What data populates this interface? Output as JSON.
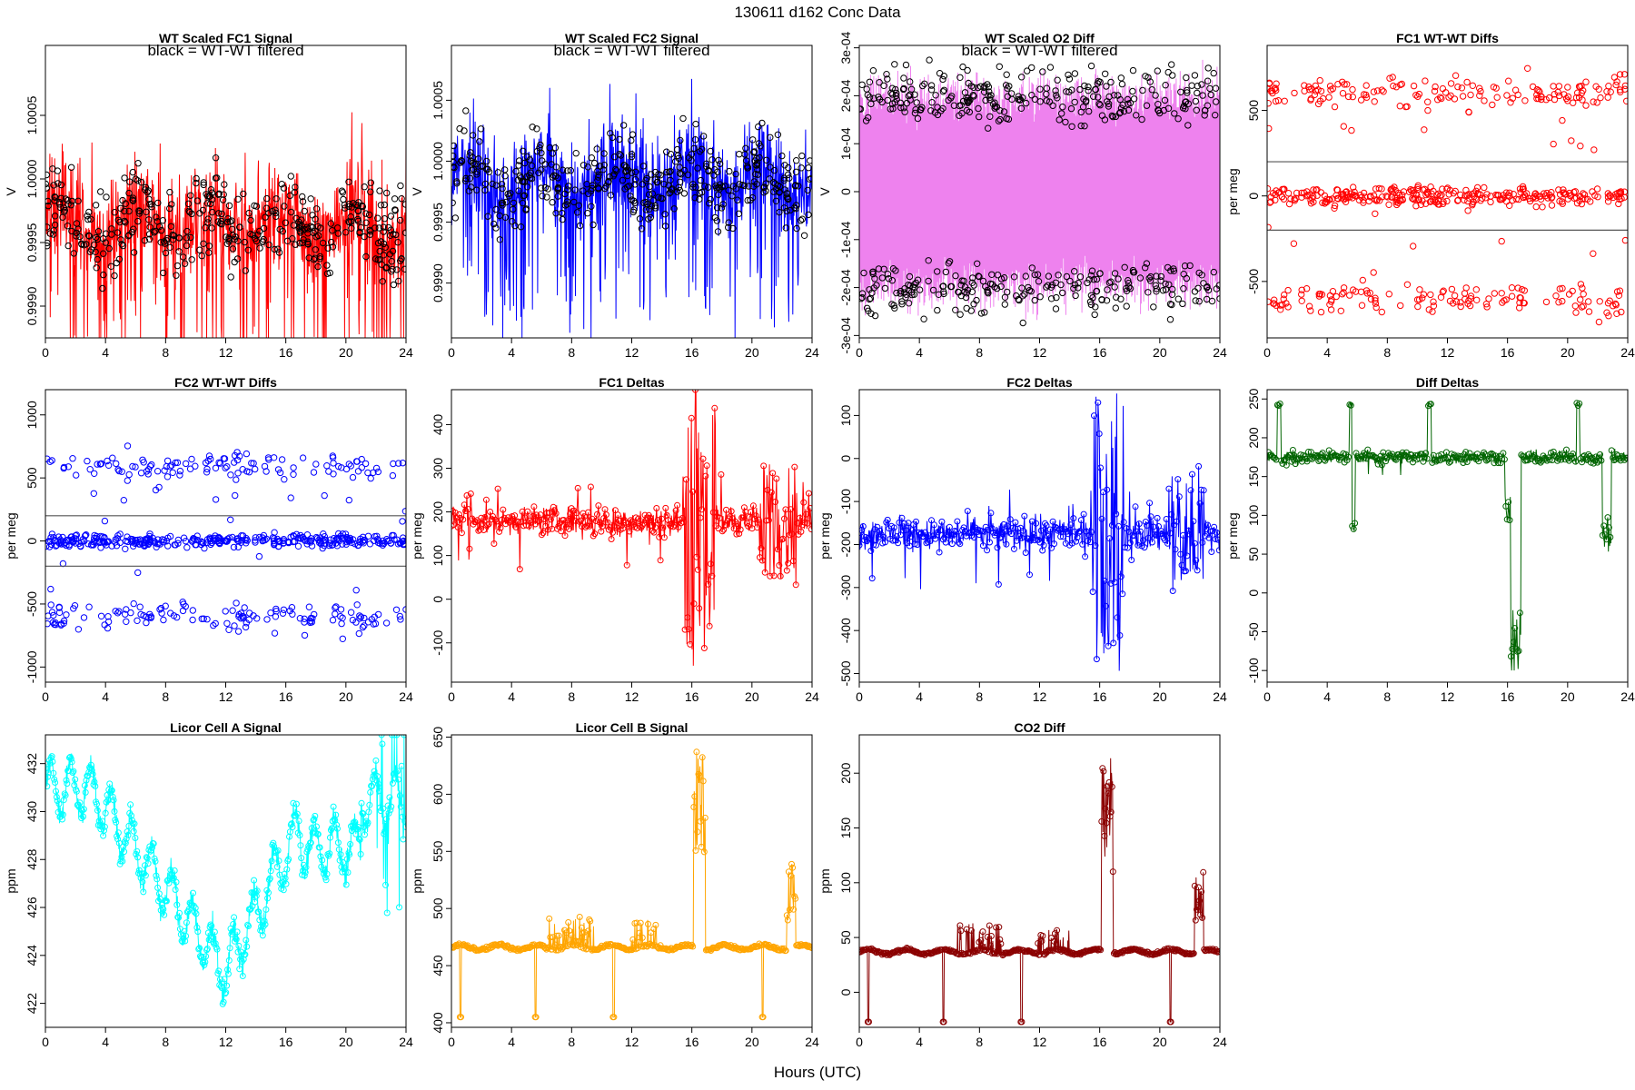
{
  "figure": {
    "title": "130611    d162    Conc Data",
    "xlabel": "Hours (UTC)"
  },
  "chart_data": [
    {
      "id": "fc1-signal",
      "type": "line",
      "title": "WT Scaled FC1 Signal",
      "subtitle": "black = WT-WT filtered",
      "ylabel": "V",
      "xlim": [
        0,
        24
      ],
      "ylim": [
        0.99875,
        1.00105
      ],
      "xticks": [
        "0",
        "4",
        "8",
        "12",
        "16",
        "20",
        "24"
      ],
      "yticks": [
        {
          "v": 0.999,
          "label": "0.9990"
        },
        {
          "v": 0.9995,
          "label": "0.9995"
        },
        {
          "v": 1.0,
          "label": "1.0000"
        },
        {
          "v": 1.0005,
          "label": "1.0005"
        }
      ],
      "line_color": "#ff0000",
      "overlay_color": "#000000",
      "style": "signal",
      "base": 0.99965,
      "amp": 0.0004,
      "noise": 0.0002,
      "spike": -0.0008,
      "hline": []
    },
    {
      "id": "fc2-signal",
      "type": "line",
      "title": "WT Scaled FC2 Signal",
      "subtitle": "black = WT-WT filtered",
      "ylabel": "V",
      "xlim": [
        0,
        24
      ],
      "ylim": [
        0.99855,
        1.00095
      ],
      "xticks": [
        "0",
        "4",
        "8",
        "12",
        "16",
        "20",
        "24"
      ],
      "yticks": [
        {
          "v": 0.999,
          "label": "0.9990"
        },
        {
          "v": 0.9995,
          "label": "0.9995"
        },
        {
          "v": 1.0,
          "label": "1.0000"
        },
        {
          "v": 1.0005,
          "label": "1.0005"
        }
      ],
      "line_color": "#0000ff",
      "overlay_color": "#000000",
      "style": "signal",
      "base": 0.99985,
      "amp": 0.0004,
      "noise": 0.0002,
      "spike": -0.0008,
      "hline": []
    },
    {
      "id": "o2-diff",
      "type": "line",
      "title": "WT Scaled O2 Diff",
      "subtitle": "black = WT-WT filtered",
      "ylabel": "V",
      "xlim": [
        0,
        24
      ],
      "ylim": [
        -0.000305,
        0.000305
      ],
      "xticks": [
        "0",
        "4",
        "8",
        "12",
        "16",
        "20",
        "24"
      ],
      "yticks": [
        {
          "v": -0.0003,
          "label": "-3e-04"
        },
        {
          "v": -0.0002,
          "label": "-2e-04"
        },
        {
          "v": -0.0001,
          "label": "-1e-04"
        },
        {
          "v": 0,
          "label": "0"
        },
        {
          "v": 0.0001,
          "label": "1e-04"
        },
        {
          "v": 0.0002,
          "label": "2e-04"
        },
        {
          "v": 0.0003,
          "label": "3e-04"
        }
      ],
      "line_color": "#ee82ee",
      "overlay_color": "#000000",
      "style": "band",
      "level": 0.0002,
      "noise": 3e-05,
      "hline": []
    },
    {
      "id": "fc1-wtwt-diffs",
      "type": "scatter",
      "title": "FC1 WT-WT Diffs",
      "ylabel": "per meg",
      "xlim": [
        0,
        24
      ],
      "ylim": [
        -830,
        880
      ],
      "xticks": [
        "0",
        "4",
        "8",
        "12",
        "16",
        "20",
        "24"
      ],
      "yticks": [
        {
          "v": -500,
          "label": "-500"
        },
        {
          "v": 0,
          "label": "0"
        },
        {
          "v": 500,
          "label": "500"
        }
      ],
      "line_color": "#ff0000",
      "style": "diffs",
      "level": 600,
      "noise": 60,
      "hline": [
        200,
        -200
      ]
    },
    {
      "id": "fc2-wtwt-diffs",
      "type": "scatter",
      "title": "FC2 WT-WT Diffs",
      "ylabel": "per meg",
      "xlim": [
        0,
        24
      ],
      "ylim": [
        -1120,
        1200
      ],
      "xticks": [
        "0",
        "4",
        "8",
        "12",
        "16",
        "20",
        "24"
      ],
      "yticks": [
        {
          "v": -1000,
          "label": "-1000"
        },
        {
          "v": -500,
          "label": "-500"
        },
        {
          "v": 0,
          "label": "0"
        },
        {
          "v": 500,
          "label": "500"
        },
        {
          "v": 1000,
          "label": "1000"
        }
      ],
      "line_color": "#0000ff",
      "style": "diffs",
      "level": 600,
      "noise": 60,
      "hline": [
        200,
        -200
      ]
    },
    {
      "id": "fc1-deltas",
      "type": "line",
      "title": "FC1 Deltas",
      "ylabel": "per meg",
      "xlim": [
        0,
        24
      ],
      "ylim": [
        -190,
        480
      ],
      "xticks": [
        "0",
        "4",
        "8",
        "12",
        "16",
        "20",
        "24"
      ],
      "yticks": [
        {
          "v": -100,
          "label": "-100"
        },
        {
          "v": 0,
          "label": "0"
        },
        {
          "v": 100,
          "label": "100"
        },
        {
          "v": 200,
          "label": "200"
        },
        {
          "v": 300,
          "label": "300"
        },
        {
          "v": 400,
          "label": "400"
        }
      ],
      "line_color": "#ff0000",
      "style": "deltas",
      "base": 180,
      "noise": 22,
      "event_amp": 280,
      "hline": []
    },
    {
      "id": "fc2-deltas",
      "type": "line",
      "title": "FC2 Deltas",
      "ylabel": "per meg",
      "xlim": [
        0,
        24
      ],
      "ylim": [
        -520,
        160
      ],
      "xticks": [
        "0",
        "4",
        "8",
        "12",
        "16",
        "20",
        "24"
      ],
      "yticks": [
        {
          "v": -500,
          "label": "-500"
        },
        {
          "v": -400,
          "label": "-400"
        },
        {
          "v": -300,
          "label": "-300"
        },
        {
          "v": -200,
          "label": "-200"
        },
        {
          "v": -100,
          "label": "-100"
        },
        {
          "v": 0,
          "label": "0"
        },
        {
          "v": 100,
          "label": "100"
        }
      ],
      "line_color": "#0000ff",
      "style": "deltas",
      "base": -175,
      "noise": 25,
      "event_amp": 280,
      "hline": []
    },
    {
      "id": "diff-deltas",
      "type": "line",
      "title": "Diff Deltas",
      "ylabel": "per meg",
      "xlim": [
        0,
        24
      ],
      "ylim": [
        -115,
        262
      ],
      "xticks": [
        "0",
        "4",
        "8",
        "12",
        "16",
        "20",
        "24"
      ],
      "yticks": [
        {
          "v": -100,
          "label": "-100"
        },
        {
          "v": -50,
          "label": "-50"
        },
        {
          "v": 0,
          "label": "0"
        },
        {
          "v": 50,
          "label": "50"
        },
        {
          "v": 100,
          "label": "100"
        },
        {
          "v": 150,
          "label": "150"
        },
        {
          "v": 200,
          "label": "200"
        },
        {
          "v": 250,
          "label": "250"
        }
      ],
      "line_color": "#006400",
      "style": "diffdeltas",
      "base": 175,
      "noise": 5,
      "hline": []
    },
    {
      "id": "licor-a",
      "type": "line",
      "title": "Licor Cell A Signal",
      "ylabel": "ppm",
      "xlim": [
        0,
        24
      ],
      "ylim": [
        421,
        433.2
      ],
      "xticks": [
        "0",
        "4",
        "8",
        "12",
        "16",
        "20",
        "24"
      ],
      "yticks": [
        {
          "v": 422,
          "label": "422"
        },
        {
          "v": 424,
          "label": "424"
        },
        {
          "v": 426,
          "label": "426"
        },
        {
          "v": 428,
          "label": "428"
        },
        {
          "v": 430,
          "label": "430"
        },
        {
          "v": 432,
          "label": "432"
        }
      ],
      "line_color": "#00ffff",
      "style": "licora",
      "hline": []
    },
    {
      "id": "licor-b",
      "type": "line",
      "title": "Licor Cell B Signal",
      "ylabel": "ppm",
      "xlim": [
        0,
        24
      ],
      "ylim": [
        396,
        652
      ],
      "xticks": [
        "0",
        "4",
        "8",
        "12",
        "16",
        "20",
        "24"
      ],
      "yticks": [
        {
          "v": 400,
          "label": "400"
        },
        {
          "v": 450,
          "label": "450"
        },
        {
          "v": 500,
          "label": "500"
        },
        {
          "v": 550,
          "label": "550"
        },
        {
          "v": 600,
          "label": "600"
        },
        {
          "v": 650,
          "label": "650"
        }
      ],
      "line_color": "#ffa500",
      "style": "licorb",
      "base": 466,
      "peak1": 640,
      "peak2": 540,
      "drop": 405,
      "hline": []
    },
    {
      "id": "co2-diff",
      "type": "line",
      "title": "CO2 Diff",
      "ylabel": "ppm",
      "xlim": [
        0,
        24
      ],
      "ylim": [
        -32,
        235
      ],
      "xticks": [
        "0",
        "4",
        "8",
        "12",
        "16",
        "20",
        "24"
      ],
      "yticks": [
        {
          "v": 0,
          "label": "0"
        },
        {
          "v": 50,
          "label": "50"
        },
        {
          "v": 100,
          "label": "100"
        },
        {
          "v": 150,
          "label": "150"
        },
        {
          "v": 200,
          "label": "200"
        }
      ],
      "line_color": "#8b0000",
      "style": "licorb",
      "base": 37,
      "peak1": 215,
      "peak2": 110,
      "drop": -27,
      "hline": []
    }
  ]
}
